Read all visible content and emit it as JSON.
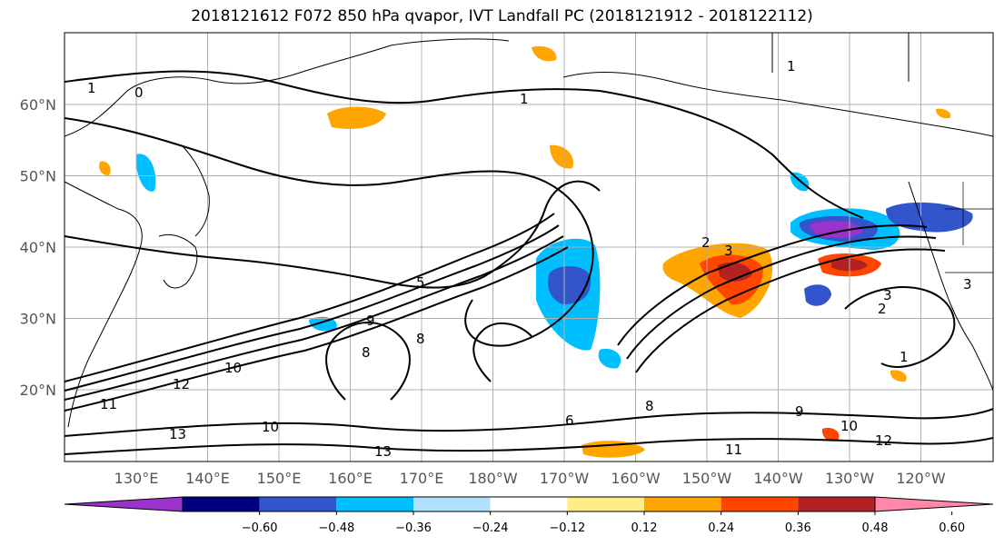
{
  "title": "2018121612 F072 850 hPa qvapor, IVT Landfall PC (2018121912 - 2018122112)",
  "map": {
    "lon_labels": [
      "130°E",
      "140°E",
      "150°E",
      "160°E",
      "170°E",
      "180°W",
      "170°W",
      "160°W",
      "150°W",
      "140°W",
      "130°W",
      "120°W"
    ],
    "lat_labels": [
      "60°N",
      "50°N",
      "40°N",
      "30°N",
      "20°N"
    ],
    "gridlines": true
  },
  "colorbar": {
    "ticks": [
      "−0.60",
      "−0.48",
      "−0.36",
      "−0.24",
      "−0.12",
      "0.12",
      "0.24",
      "0.36",
      "0.48",
      "0.60"
    ],
    "colors": [
      "#9933cc",
      "#000080",
      "#3355cc",
      "#00bfff",
      "#b0e0ff",
      "#ffffff",
      "#ffee88",
      "#ffa500",
      "#ff4500",
      "#b22222",
      "#ff88aa"
    ]
  },
  "contour_labels": [
    "1",
    "0",
    "1",
    "3",
    "3",
    "2",
    "5",
    "9",
    "10",
    "12",
    "11",
    "13",
    "13",
    "10",
    "8",
    "8",
    "8",
    "9",
    "11",
    "12",
    "10",
    "3",
    "2",
    "1",
    "6",
    "1"
  ],
  "colors": {
    "land_outline": "#000000",
    "contour": "#000000",
    "grid": "#b0b0b0"
  }
}
